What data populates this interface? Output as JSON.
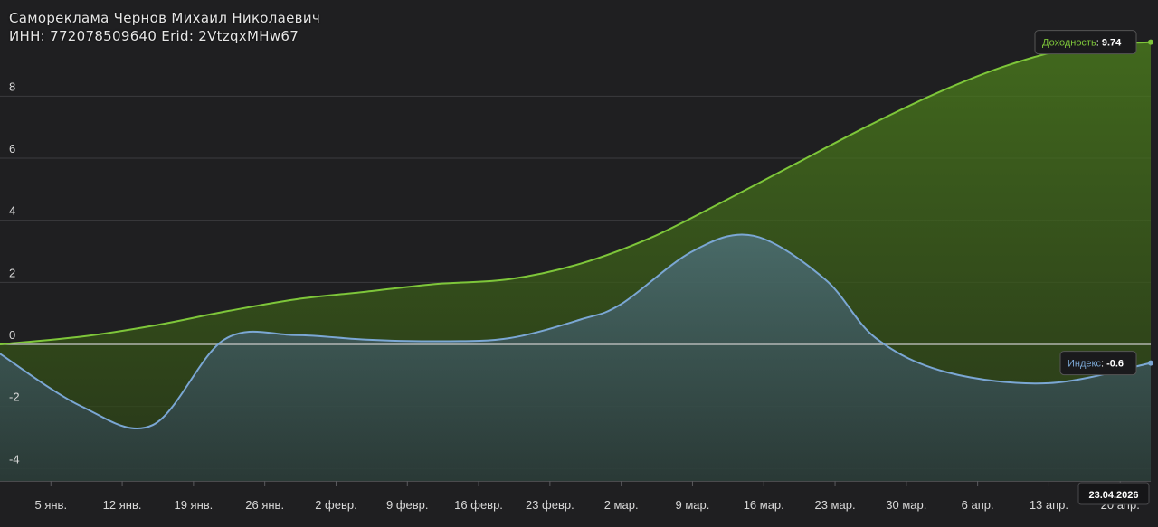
{
  "header": {
    "line1": "Самореклама Чернов Михаил Николаевич",
    "line2": "ИНН: 772078509640 Erid: 2VtzqxMHw67"
  },
  "chart_data": {
    "type": "area",
    "title": "",
    "xlabel": "",
    "ylabel": "",
    "ylim": [
      -4.4,
      10.4
    ],
    "yticks": [
      -4,
      -2,
      0,
      2,
      4,
      6,
      8
    ],
    "ytick_labels": [
      "-4",
      "-2",
      "0",
      "2",
      "4",
      "6",
      "8"
    ],
    "xlim": [
      "2025-12-31",
      "2026-04-23"
    ],
    "xticks": [
      "2026-01-05",
      "2026-01-12",
      "2026-01-19",
      "2026-01-26",
      "2026-02-02",
      "2026-02-09",
      "2026-02-16",
      "2026-02-23",
      "2026-03-02",
      "2026-03-09",
      "2026-03-16",
      "2026-03-23",
      "2026-03-30",
      "2026-04-06",
      "2026-04-13",
      "2026-04-20"
    ],
    "xtick_labels": [
      "5 янв.",
      "12 янв.",
      "19 янв.",
      "26 янв.",
      "2 февр.",
      "9 февр.",
      "16 февр.",
      "23 февр.",
      "2 мар.",
      "9 мар.",
      "16 мар.",
      "23 мар.",
      "30 мар.",
      "6 апр.",
      "13 апр.",
      "20 апр."
    ],
    "grid": true,
    "series": [
      {
        "name": "Доходность",
        "color": "#7ec63a",
        "x": [
          "2025-12-31",
          "2026-01-08",
          "2026-01-15",
          "2026-01-22",
          "2026-01-29",
          "2026-02-05",
          "2026-02-12",
          "2026-02-19",
          "2026-02-26",
          "2026-03-05",
          "2026-03-12",
          "2026-03-19",
          "2026-03-26",
          "2026-04-02",
          "2026-04-09",
          "2026-04-16",
          "2026-04-23"
        ],
        "values": [
          0.0,
          0.25,
          0.6,
          1.05,
          1.45,
          1.7,
          1.95,
          2.1,
          2.6,
          3.45,
          4.6,
          5.8,
          7.0,
          8.1,
          9.0,
          9.6,
          9.74
        ]
      },
      {
        "name": "Индекс",
        "color": "#7ba7d4",
        "x": [
          "2025-12-31",
          "2026-01-08",
          "2026-01-15",
          "2026-01-22",
          "2026-01-29",
          "2026-02-05",
          "2026-02-12",
          "2026-02-19",
          "2026-02-26",
          "2026-03-02",
          "2026-03-09",
          "2026-03-15",
          "2026-03-22",
          "2026-03-27",
          "2026-04-03",
          "2026-04-13",
          "2026-04-23"
        ],
        "values": [
          -0.3,
          -2.0,
          -2.6,
          0.15,
          0.3,
          0.15,
          0.1,
          0.2,
          0.8,
          1.3,
          3.0,
          3.5,
          2.1,
          0.2,
          -0.9,
          -1.25,
          -0.6
        ]
      }
    ],
    "end_labels": [
      {
        "series": "Доходность",
        "label": "Доходность",
        "value": "9.74"
      },
      {
        "series": "Индекс",
        "label": "Индекс",
        "value": "-0.6"
      }
    ],
    "current_date": "23.04.2026"
  }
}
